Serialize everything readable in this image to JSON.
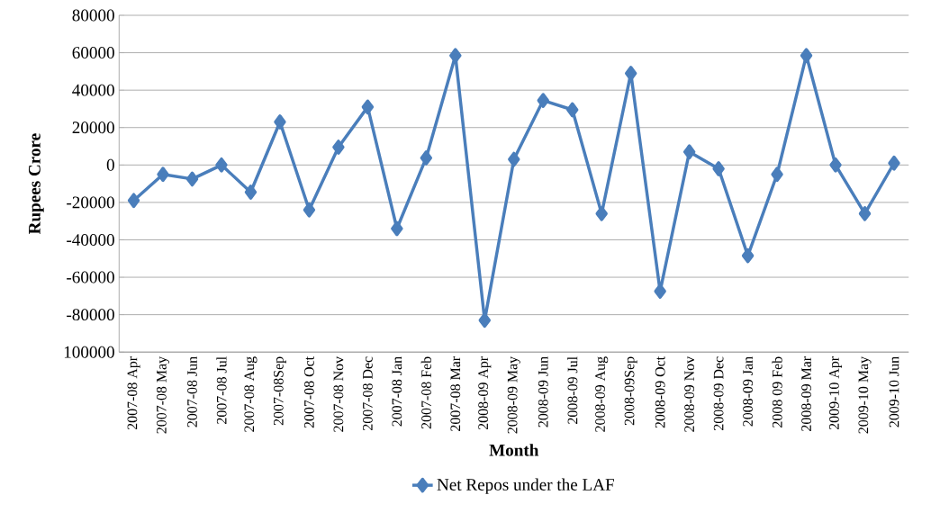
{
  "chart_data": {
    "type": "line",
    "xlabel": "Month",
    "ylabel": "Rupees Crore",
    "categories": [
      "2007-08 Apr",
      "2007-08 May",
      "2007-08 Jun",
      "2007-08 Jul",
      "2007-08 Aug",
      "2007-08Sep",
      "2007-08 Oct",
      "2007-08 Nov",
      "2007-08 Dec",
      "2007-08 Jan",
      "2007-08 Feb",
      "2007-08 Mar",
      "2008-09 Apr",
      "2008-09 May",
      "2008-09 Jun",
      "2008-09 Jul",
      "2008-09 Aug",
      "2008-09Sep",
      "2008-09 Oct",
      "2008-09 Nov",
      "2008-09 Dec",
      "2008-09 Jan",
      "2008 09 Feb",
      "2008-09 Mar",
      "2009-10 Apr",
      "2009-10 May",
      "2009-10 Jun"
    ],
    "series": [
      {
        "name": "Net Repos under the LAF",
        "color": "#4a7ebb",
        "values": [
          -19000,
          -5000,
          -7500,
          0,
          -14500,
          23000,
          -24000,
          9500,
          31000,
          -34000,
          3800,
          58500,
          -83000,
          3000,
          34500,
          29500,
          -26000,
          49000,
          -67500,
          7000,
          -2000,
          -48500,
          -5000,
          58500,
          0,
          -26000,
          1000
        ]
      }
    ],
    "ylim": [
      -100000,
      80000
    ],
    "yticks": [
      {
        "value": -100000,
        "label": "100000"
      },
      -80000,
      -60000,
      -40000,
      -20000,
      0,
      20000,
      40000,
      60000,
      80000
    ],
    "grid": "y",
    "legend": "bottom",
    "marker": "diamond",
    "line_style": "solid"
  }
}
